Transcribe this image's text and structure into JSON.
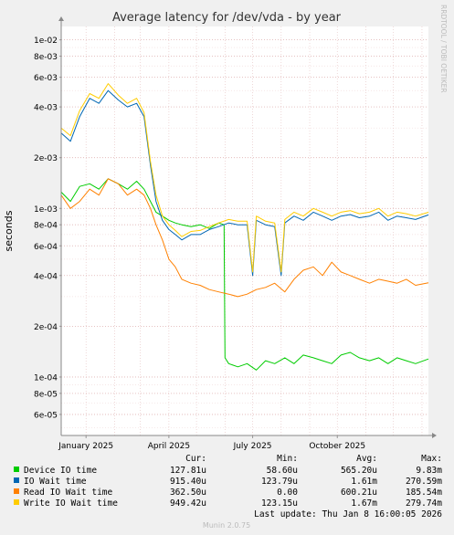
{
  "chart_data": {
    "type": "line",
    "title": "Average latency for /dev/vda - by year",
    "ylabel": "seconds",
    "side_label": "RRDTOOL / TOBI OETIKER",
    "y_scale": "log",
    "ylim": [
      4.5e-05,
      0.012
    ],
    "xlim": [
      "2024-12-05",
      "2026-01-08"
    ],
    "grid": true,
    "legend_position": "bottom",
    "y_ticks": [
      {
        "value": 0.01,
        "label": "1e-02"
      },
      {
        "value": 0.008,
        "label": "8e-03"
      },
      {
        "value": 0.006,
        "label": "6e-03"
      },
      {
        "value": 0.004,
        "label": "4e-03"
      },
      {
        "value": 0.002,
        "label": "2e-03"
      },
      {
        "value": 0.001,
        "label": "1e-03"
      },
      {
        "value": 0.0008,
        "label": "8e-04"
      },
      {
        "value": 0.0006,
        "label": "6e-04"
      },
      {
        "value": 0.0004,
        "label": "4e-04"
      },
      {
        "value": 0.0002,
        "label": "2e-04"
      },
      {
        "value": 0.0001,
        "label": "1e-04"
      },
      {
        "value": 8e-05,
        "label": "8e-05"
      },
      {
        "value": 6e-05,
        "label": "6e-05"
      }
    ],
    "x_ticks": [
      {
        "date": "2025-01-01",
        "label": "January 2025"
      },
      {
        "date": "2025-04-01",
        "label": "April 2025"
      },
      {
        "date": "2025-07-01",
        "label": "July 2025"
      },
      {
        "date": "2025-10-01",
        "label": "October 2025"
      }
    ],
    "x_month_starts": [
      "2025-01-01",
      "2025-02-01",
      "2025-03-01",
      "2025-04-01",
      "2025-05-01",
      "2025-06-01",
      "2025-07-01",
      "2025-08-01",
      "2025-09-01",
      "2025-10-01",
      "2025-11-01",
      "2025-12-01",
      "2026-01-01"
    ],
    "series": [
      {
        "name": "Device IO time",
        "color": "#00cc00",
        "x": [
          "2024-12-05",
          "2024-12-15",
          "2024-12-25",
          "2025-01-05",
          "2025-01-15",
          "2025-01-25",
          "2025-02-05",
          "2025-02-15",
          "2025-02-25",
          "2025-03-05",
          "2025-03-12",
          "2025-03-18",
          "2025-03-25",
          "2025-04-01",
          "2025-04-08",
          "2025-04-15",
          "2025-04-25",
          "2025-05-05",
          "2025-05-15",
          "2025-05-25",
          "2025-05-31",
          "2025-06-01",
          "2025-06-05",
          "2025-06-15",
          "2025-06-25",
          "2025-07-05",
          "2025-07-15",
          "2025-07-25",
          "2025-08-05",
          "2025-08-15",
          "2025-08-25",
          "2025-09-05",
          "2025-09-15",
          "2025-09-25",
          "2025-10-05",
          "2025-10-15",
          "2025-10-25",
          "2025-11-05",
          "2025-11-15",
          "2025-11-25",
          "2025-12-05",
          "2025-12-15",
          "2025-12-25",
          "2026-01-08"
        ],
        "values": [
          0.00125,
          0.0011,
          0.00135,
          0.0014,
          0.0013,
          0.0015,
          0.0014,
          0.0013,
          0.00145,
          0.0013,
          0.0011,
          0.00095,
          0.0009,
          0.00085,
          0.00082,
          0.0008,
          0.00078,
          0.0008,
          0.00076,
          0.00082,
          0.0008,
          0.00013,
          0.00012,
          0.000115,
          0.00012,
          0.00011,
          0.000125,
          0.00012,
          0.00013,
          0.00012,
          0.000135,
          0.00013,
          0.000125,
          0.00012,
          0.000135,
          0.00014,
          0.00013,
          0.000125,
          0.00013,
          0.00012,
          0.00013,
          0.000125,
          0.00012,
          0.000128
        ]
      },
      {
        "name": "IO Wait time",
        "color": "#0066b3",
        "x": [
          "2024-12-05",
          "2024-12-15",
          "2024-12-25",
          "2025-01-05",
          "2025-01-15",
          "2025-01-25",
          "2025-02-05",
          "2025-02-15",
          "2025-02-25",
          "2025-03-05",
          "2025-03-12",
          "2025-03-18",
          "2025-03-25",
          "2025-04-01",
          "2025-04-08",
          "2025-04-15",
          "2025-04-25",
          "2025-05-05",
          "2025-05-15",
          "2025-05-25",
          "2025-06-05",
          "2025-06-15",
          "2025-06-25",
          "2025-07-01",
          "2025-07-05",
          "2025-07-15",
          "2025-07-25",
          "2025-08-01",
          "2025-08-05",
          "2025-08-15",
          "2025-08-25",
          "2025-09-05",
          "2025-09-15",
          "2025-09-25",
          "2025-10-05",
          "2025-10-15",
          "2025-10-25",
          "2025-11-05",
          "2025-11-15",
          "2025-11-25",
          "2025-12-05",
          "2025-12-15",
          "2025-12-25",
          "2026-01-08"
        ],
        "values": [
          0.0028,
          0.0025,
          0.0035,
          0.0045,
          0.0042,
          0.005,
          0.0044,
          0.004,
          0.0042,
          0.0035,
          0.0018,
          0.0011,
          0.00085,
          0.00075,
          0.0007,
          0.00065,
          0.0007,
          0.0007,
          0.00075,
          0.00078,
          0.00082,
          0.0008,
          0.0008,
          0.0004,
          0.00085,
          0.0008,
          0.00078,
          0.0004,
          0.00082,
          0.0009,
          0.00085,
          0.00095,
          0.0009,
          0.00085,
          0.0009,
          0.00092,
          0.00088,
          0.0009,
          0.00095,
          0.00085,
          0.0009,
          0.00088,
          0.00086,
          0.000915
        ]
      },
      {
        "name": "Read IO Wait time",
        "color": "#ff8000",
        "x": [
          "2024-12-05",
          "2024-12-15",
          "2024-12-25",
          "2025-01-05",
          "2025-01-15",
          "2025-01-25",
          "2025-02-05",
          "2025-02-15",
          "2025-02-25",
          "2025-03-05",
          "2025-03-12",
          "2025-03-18",
          "2025-03-25",
          "2025-04-01",
          "2025-04-08",
          "2025-04-15",
          "2025-04-25",
          "2025-05-05",
          "2025-05-15",
          "2025-05-25",
          "2025-06-05",
          "2025-06-15",
          "2025-06-25",
          "2025-07-05",
          "2025-07-15",
          "2025-07-25",
          "2025-08-05",
          "2025-08-15",
          "2025-08-25",
          "2025-09-05",
          "2025-09-15",
          "2025-09-25",
          "2025-10-05",
          "2025-10-15",
          "2025-10-25",
          "2025-11-05",
          "2025-11-15",
          "2025-11-25",
          "2025-12-05",
          "2025-12-15",
          "2025-12-25",
          "2026-01-08"
        ],
        "values": [
          0.0012,
          0.001,
          0.0011,
          0.0013,
          0.0012,
          0.0015,
          0.0014,
          0.0012,
          0.0013,
          0.0012,
          0.001,
          0.0008,
          0.00065,
          0.0005,
          0.00045,
          0.00038,
          0.00036,
          0.00035,
          0.00033,
          0.00032,
          0.00031,
          0.0003,
          0.00031,
          0.00033,
          0.00034,
          0.00036,
          0.00032,
          0.00038,
          0.00043,
          0.00045,
          0.0004,
          0.00048,
          0.00042,
          0.0004,
          0.00038,
          0.00036,
          0.00038,
          0.00037,
          0.00036,
          0.00038,
          0.00035,
          0.0003625
        ]
      },
      {
        "name": "Write IO Wait time",
        "color": "#ffcc00",
        "x": [
          "2024-12-05",
          "2024-12-15",
          "2024-12-25",
          "2025-01-05",
          "2025-01-15",
          "2025-01-25",
          "2025-02-05",
          "2025-02-15",
          "2025-02-25",
          "2025-03-05",
          "2025-03-12",
          "2025-03-18",
          "2025-03-25",
          "2025-04-01",
          "2025-04-08",
          "2025-04-15",
          "2025-04-25",
          "2025-05-05",
          "2025-05-15",
          "2025-05-25",
          "2025-06-05",
          "2025-06-15",
          "2025-06-25",
          "2025-07-01",
          "2025-07-05",
          "2025-07-15",
          "2025-07-25",
          "2025-08-01",
          "2025-08-05",
          "2025-08-15",
          "2025-08-25",
          "2025-09-05",
          "2025-09-15",
          "2025-09-25",
          "2025-10-05",
          "2025-10-15",
          "2025-10-25",
          "2025-11-05",
          "2025-11-15",
          "2025-11-25",
          "2025-12-05",
          "2025-12-15",
          "2025-12-25",
          "2026-01-08"
        ],
        "values": [
          0.003,
          0.0027,
          0.0038,
          0.0048,
          0.0045,
          0.0055,
          0.0047,
          0.0042,
          0.0045,
          0.0037,
          0.0019,
          0.0012,
          0.0009,
          0.0008,
          0.00074,
          0.00068,
          0.00073,
          0.00074,
          0.00078,
          0.00082,
          0.00086,
          0.00084,
          0.00084,
          0.00042,
          0.0009,
          0.00084,
          0.00082,
          0.00042,
          0.00086,
          0.00095,
          0.0009,
          0.001,
          0.00095,
          0.0009,
          0.00095,
          0.00097,
          0.00093,
          0.00095,
          0.001,
          0.0009,
          0.00095,
          0.00093,
          0.0009,
          0.000949
        ]
      }
    ]
  },
  "legend": {
    "headers": {
      "cur": "Cur:",
      "min": "Min:",
      "avg": "Avg:",
      "max": "Max:"
    },
    "rows": [
      {
        "name": "Device IO time",
        "color": "#00cc00",
        "cur": "127.81u",
        "min": "58.60u",
        "avg": "565.20u",
        "max": "9.83m"
      },
      {
        "name": "IO Wait time",
        "color": "#0066b3",
        "cur": "915.40u",
        "min": "123.79u",
        "avg": "1.61m",
        "max": "270.59m"
      },
      {
        "name": "Read IO Wait time",
        "color": "#ff8000",
        "cur": "362.50u",
        "min": "0.00",
        "avg": "600.21u",
        "max": "185.54m"
      },
      {
        "name": "Write IO Wait time",
        "color": "#ffcc00",
        "cur": "949.42u",
        "min": "123.15u",
        "avg": "1.67m",
        "max": "279.74m"
      }
    ],
    "last_update": "Last update: Thu Jan  8 16:00:05 2026"
  },
  "footer": "Munin 2.0.75"
}
